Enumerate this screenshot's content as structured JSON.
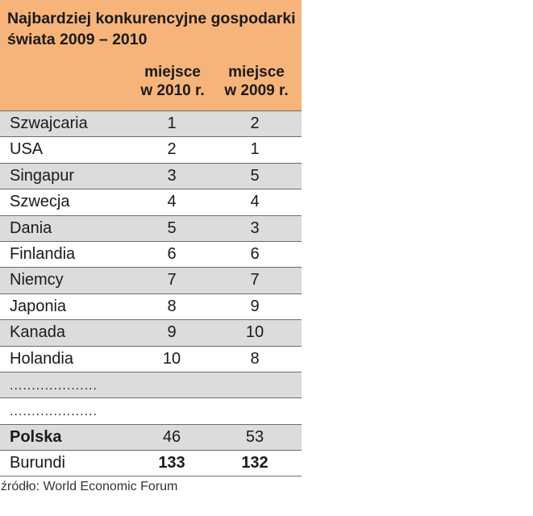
{
  "title": "Najbardziej konkurencyjne gospodarki świata 2009 – 2010",
  "columns": {
    "col_2010": "miejsce w 2010 r.",
    "col_2010_line1": "miejsce",
    "col_2010_line2": "w 2010 r.",
    "col_2009_line1": "miejsce",
    "col_2009_line2": "w 2009 r."
  },
  "rows": [
    {
      "country": "Szwajcaria",
      "y2010": "1",
      "y2009": "2"
    },
    {
      "country": "USA",
      "y2010": "2",
      "y2009": "1"
    },
    {
      "country": "Singapur",
      "y2010": "3",
      "y2009": "5"
    },
    {
      "country": "Szwecja",
      "y2010": "4",
      "y2009": "4"
    },
    {
      "country": "Dania",
      "y2010": "5",
      "y2009": "3"
    },
    {
      "country": "Finlandia",
      "y2010": "6",
      "y2009": "6"
    },
    {
      "country": "Niemcy",
      "y2010": "7",
      "y2009": "7"
    },
    {
      "country": "Japonia",
      "y2010": "8",
      "y2009": "9"
    },
    {
      "country": "Kanada",
      "y2010": "9",
      "y2009": "10"
    },
    {
      "country": "Holandia",
      "y2010": "10",
      "y2009": "8"
    },
    {
      "country": "....................",
      "y2010": "",
      "y2009": ""
    },
    {
      "country": "....................",
      "y2010": "",
      "y2009": ""
    },
    {
      "country": "Polska",
      "y2010": "46",
      "y2009": "53"
    },
    {
      "country": "Burundi",
      "y2010": "133",
      "y2009": "132"
    }
  ],
  "source": "źródło: World Economic Forum",
  "colors": {
    "header_bg": "#f7b47a",
    "shaded_row": "#dcdcdc",
    "rule": "#6b6b6b"
  }
}
